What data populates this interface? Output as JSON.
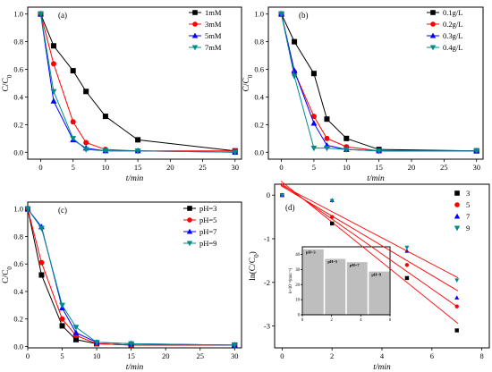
{
  "chart_data": [
    {
      "id": "a",
      "type": "line",
      "panel_label": "(a)",
      "xlabel": "t/min",
      "ylabel": "C/C0",
      "xlim": [
        -2,
        31
      ],
      "ylim": [
        -0.05,
        1.05
      ],
      "xticks": [
        0,
        5,
        10,
        15,
        20,
        25,
        30
      ],
      "yticks": [
        0.0,
        0.2,
        0.4,
        0.6,
        0.8,
        1.0
      ],
      "xtick_labels": [
        "0",
        "5",
        "10",
        "15",
        "20",
        "25",
        "30"
      ],
      "ytick_labels": [
        "0.0",
        "0.2",
        "0.4",
        "0.6",
        "0.8",
        "1.0"
      ],
      "legend_position": "top-right",
      "series": [
        {
          "name": "1mM",
          "color": "#000000",
          "marker": "square",
          "x": [
            0,
            2,
            5,
            7,
            10,
            15,
            30
          ],
          "y": [
            1.0,
            0.77,
            0.59,
            0.44,
            0.26,
            0.09,
            0.01
          ]
        },
        {
          "name": "3mM",
          "color": "#ff0000",
          "marker": "circle",
          "x": [
            0,
            2,
            5,
            7,
            10,
            15,
            30
          ],
          "y": [
            1.0,
            0.64,
            0.22,
            0.07,
            0.02,
            0.01,
            0.01
          ]
        },
        {
          "name": "5mM",
          "color": "#0000ff",
          "marker": "triangle-up",
          "x": [
            0,
            2,
            5,
            7,
            10,
            15,
            30
          ],
          "y": [
            1.0,
            0.37,
            0.09,
            0.03,
            0.01,
            0.01,
            0.0
          ]
        },
        {
          "name": "7mM",
          "color": "#008b8b",
          "marker": "triangle-down",
          "x": [
            0,
            2,
            5,
            7,
            10,
            15,
            30
          ],
          "y": [
            1.0,
            0.44,
            0.1,
            0.02,
            0.01,
            0.01,
            0.0
          ]
        }
      ]
    },
    {
      "id": "b",
      "type": "line",
      "panel_label": "(b)",
      "xlabel": "t/min",
      "ylabel": "C/C0",
      "xlim": [
        -2,
        31
      ],
      "ylim": [
        -0.05,
        1.05
      ],
      "xticks": [
        0,
        5,
        10,
        15,
        20,
        25,
        30
      ],
      "yticks": [
        0.0,
        0.2,
        0.4,
        0.6,
        0.8,
        1.0
      ],
      "xtick_labels": [
        "0",
        "5",
        "10",
        "15",
        "20",
        "25",
        "30"
      ],
      "ytick_labels": [
        "0.0",
        "0.2",
        "0.4",
        "0.6",
        "0.8",
        "1.0"
      ],
      "legend_position": "top-right",
      "series": [
        {
          "name": "0.1g/L",
          "color": "#000000",
          "marker": "square",
          "x": [
            0,
            2,
            5,
            7,
            10,
            15,
            30
          ],
          "y": [
            1.0,
            0.8,
            0.57,
            0.24,
            0.1,
            0.02,
            0.01
          ]
        },
        {
          "name": "0.2g/L",
          "color": "#ff0000",
          "marker": "circle",
          "x": [
            0,
            2,
            5,
            7,
            10,
            15,
            30
          ],
          "y": [
            1.0,
            0.58,
            0.26,
            0.1,
            0.04,
            0.01,
            0.01
          ]
        },
        {
          "name": "0.3g/L",
          "color": "#0000ff",
          "marker": "triangle-up",
          "x": [
            0,
            2,
            5,
            7,
            10,
            15,
            30
          ],
          "y": [
            1.0,
            0.59,
            0.21,
            0.05,
            0.02,
            0.01,
            0.01
          ]
        },
        {
          "name": "0.4g/L",
          "color": "#008b8b",
          "marker": "triangle-down",
          "x": [
            0,
            2,
            5,
            7,
            10,
            15,
            30
          ],
          "y": [
            1.0,
            0.55,
            0.03,
            0.03,
            0.02,
            0.01,
            0.01
          ]
        }
      ]
    },
    {
      "id": "c",
      "type": "line",
      "panel_label": "(c)",
      "xlabel": "t/min",
      "ylabel": "C/C0",
      "xlim": [
        0,
        31
      ],
      "ylim": [
        -0.01,
        1.05
      ],
      "xticks": [
        0,
        5,
        10,
        15,
        20,
        25,
        30
      ],
      "yticks": [
        0.0,
        0.2,
        0.4,
        0.6,
        0.8,
        1.0
      ],
      "xtick_labels": [
        "0",
        "5",
        "10",
        "15",
        "20",
        "25",
        "30"
      ],
      "ytick_labels": [
        "0.0",
        "0.2",
        "0.4",
        "0.6",
        "0.8",
        "1.0"
      ],
      "legend_position": "top-right",
      "series": [
        {
          "name": "pH=3",
          "color": "#000000",
          "marker": "square",
          "x": [
            0,
            2,
            5,
            7,
            10,
            15,
            30
          ],
          "y": [
            1.0,
            0.52,
            0.15,
            0.05,
            0.02,
            0.01,
            0.01
          ]
        },
        {
          "name": "pH=5",
          "color": "#ff0000",
          "marker": "circle",
          "x": [
            0,
            2,
            5,
            7,
            10,
            15,
            30
          ],
          "y": [
            1.0,
            0.61,
            0.2,
            0.08,
            0.02,
            0.01,
            0.01
          ]
        },
        {
          "name": "pH=7",
          "color": "#0000ff",
          "marker": "triangle-up",
          "x": [
            0,
            2,
            5,
            7,
            10,
            15,
            30
          ],
          "y": [
            1.0,
            0.87,
            0.28,
            0.1,
            0.03,
            0.02,
            0.01
          ]
        },
        {
          "name": "pH=9",
          "color": "#008b8b",
          "marker": "triangle-down",
          "x": [
            0,
            2,
            5,
            7,
            10,
            15,
            30
          ],
          "y": [
            1.0,
            0.86,
            0.3,
            0.14,
            0.03,
            0.02,
            0.01
          ]
        }
      ]
    },
    {
      "id": "d",
      "type": "scatter",
      "panel_label": "(d)",
      "xlabel": "t/min",
      "ylabel": "ln(C/C0)",
      "xlim": [
        -0.3,
        8.3
      ],
      "ylim": [
        -3.5,
        0.25
      ],
      "xticks": [
        0,
        2,
        4,
        6,
        8
      ],
      "yticks": [
        0,
        -1,
        -2,
        -3
      ],
      "xtick_labels": [
        "0",
        "2",
        "4",
        "6",
        "8"
      ],
      "ytick_labels": [
        "0",
        "-1",
        "-2",
        "-3"
      ],
      "legend_position": "top-right",
      "series": [
        {
          "name": "3",
          "color": "#000000",
          "marker": "square",
          "x": [
            0,
            2,
            5,
            7
          ],
          "y": [
            0.0,
            -0.65,
            -1.9,
            -3.1
          ],
          "fit": [
            0.3,
            -0.46
          ]
        },
        {
          "name": "5",
          "color": "#ff0000",
          "marker": "circle",
          "x": [
            0,
            2,
            5,
            7
          ],
          "y": [
            0.0,
            -0.5,
            -1.6,
            -2.55
          ],
          "fit": [
            0.25,
            -0.4
          ]
        },
        {
          "name": "7",
          "color": "#0000ff",
          "marker": "triangle-up",
          "x": [
            0,
            2,
            5,
            7
          ],
          "y": [
            0.0,
            -0.12,
            -1.28,
            -2.35
          ],
          "fit": [
            0.2,
            -0.34
          ]
        },
        {
          "name": "9",
          "color": "#008b8b",
          "marker": "triangle-down",
          "x": [
            0,
            2,
            5,
            7
          ],
          "y": [
            0.0,
            -0.13,
            -1.2,
            -1.95
          ],
          "fit": [
            0.22,
            -0.3
          ]
        }
      ],
      "inset": {
        "type": "bar",
        "ylabel": "k×10⁻³(min⁻¹)",
        "ylim": [
          0,
          45
        ],
        "yticks": [
          0,
          10,
          20,
          30,
          40
        ],
        "ytick_labels": [
          "0",
          "10",
          "20",
          "30",
          "40"
        ],
        "xlim": [
          0,
          6
        ],
        "xticks": [
          0,
          2,
          4,
          6
        ],
        "xtick_labels": [
          "0",
          "2",
          "4",
          "6"
        ],
        "categories": [
          "pH=3",
          "pH=5",
          "pH=7",
          "pH=9"
        ],
        "values": [
          43.5,
          37.2,
          35.0,
          28.8
        ],
        "bar_color": "#bebebe"
      }
    }
  ]
}
